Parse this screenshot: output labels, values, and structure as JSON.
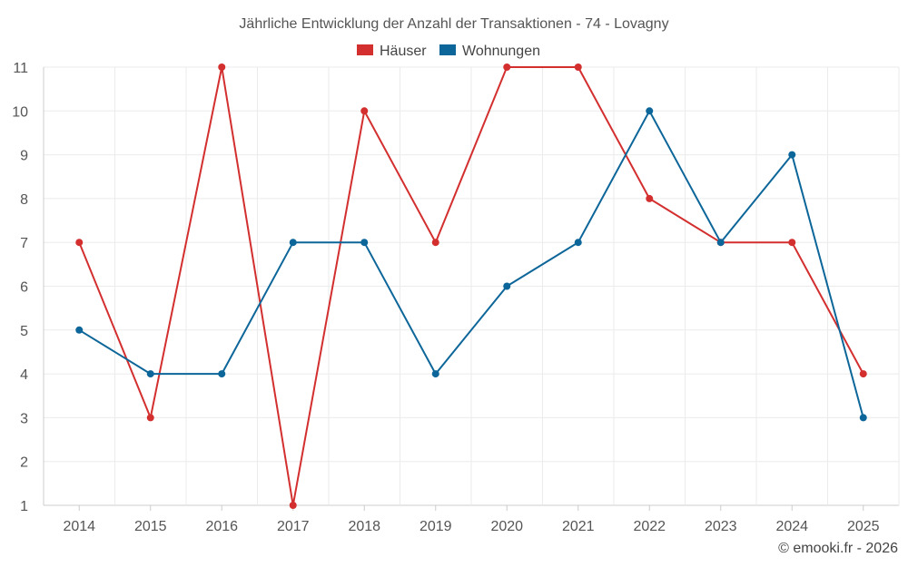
{
  "chart_data": {
    "type": "line",
    "title": "Jährliche Entwicklung der Anzahl der Transaktionen - 74 - Lovagny",
    "categories": [
      "2014",
      "2015",
      "2016",
      "2017",
      "2018",
      "2019",
      "2020",
      "2021",
      "2022",
      "2023",
      "2024",
      "2025"
    ],
    "series": [
      {
        "name": "Häuser",
        "color": "#d32f2f",
        "values": [
          7,
          3,
          11,
          1,
          10,
          7,
          11,
          11,
          8,
          7,
          7,
          4
        ]
      },
      {
        "name": "Wohnungen",
        "color": "#0d6699",
        "values": [
          5,
          4,
          4,
          7,
          7,
          4,
          6,
          7,
          10,
          7,
          9,
          3
        ]
      }
    ],
    "ylim": [
      1,
      11
    ],
    "yticks": [
      1,
      2,
      3,
      4,
      5,
      6,
      7,
      8,
      9,
      10,
      11
    ],
    "xlabel": "",
    "ylabel": "",
    "grid": true,
    "legend": "top-center"
  },
  "credit": "© emooki.fr - 2026"
}
